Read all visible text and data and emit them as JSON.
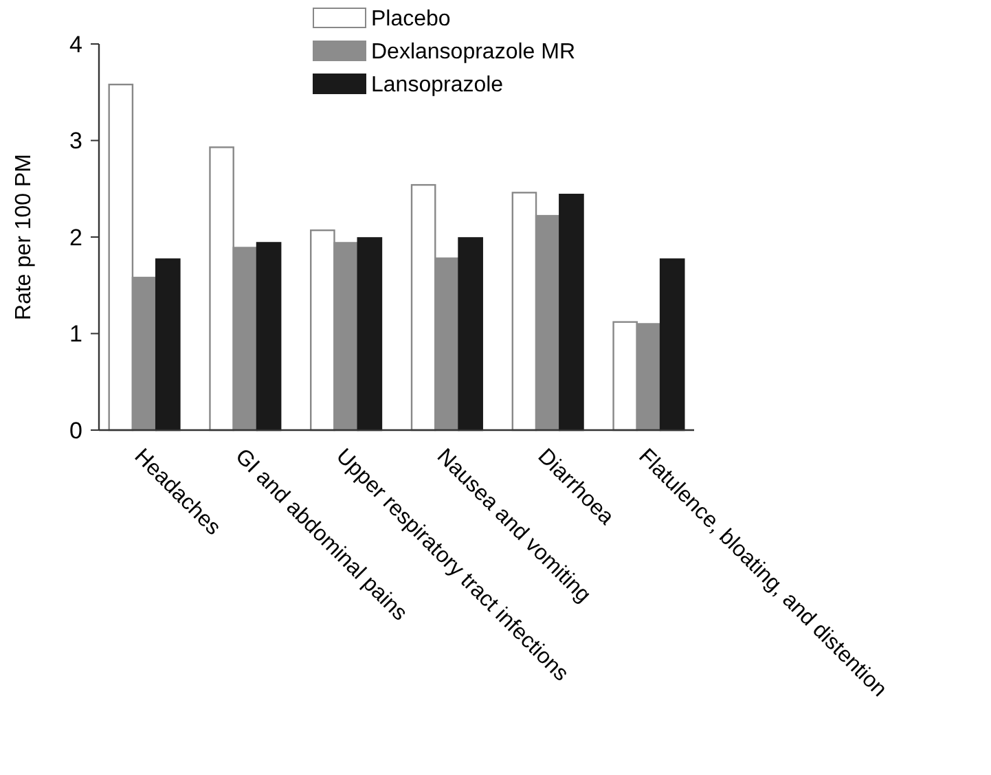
{
  "chart_data": {
    "type": "bar",
    "ylabel": "Rate per 100 PM",
    "categories": [
      "Headaches",
      "GI and abdominal pains",
      "Upper respiratory tract infections",
      "Nausea and vomiting",
      "Diarrhoea",
      "Flatulence, bloating, and distention"
    ],
    "series": [
      {
        "name": "Placebo",
        "color": "#ffffff",
        "values": [
          3.58,
          2.93,
          2.07,
          2.54,
          2.46,
          1.12
        ]
      },
      {
        "name": "Dexlansoprazole MR",
        "color": "#8c8c8c",
        "values": [
          1.58,
          1.89,
          1.94,
          1.78,
          2.22,
          1.1
        ]
      },
      {
        "name": "Lansoprazole",
        "color": "#1a1a1a",
        "values": [
          1.77,
          1.94,
          1.99,
          1.99,
          2.44,
          1.77
        ]
      }
    ],
    "ylim": [
      0,
      4
    ],
    "yticks": [
      0,
      1,
      2,
      3,
      4
    ],
    "legend": "top"
  }
}
